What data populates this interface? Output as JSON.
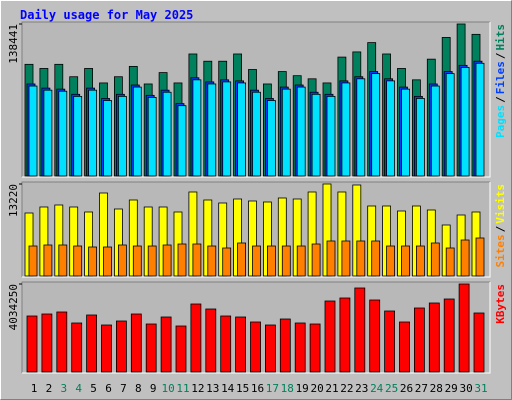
{
  "title": "Daily usage for May 2025",
  "legend_separator": "/",
  "chart_data": [
    {
      "type": "bar",
      "ylim": [
        0,
        138441
      ],
      "yticks": [
        138441
      ],
      "series": [
        {
          "name": "Hits",
          "color": "#00805c",
          "values": [
            101714,
            97947,
            101714,
            90413,
            97947,
            84762,
            90413,
            99831,
            83820,
            94180,
            84762,
            111132,
            104540,
            104540,
            111132,
            97005,
            83820,
            95122,
            91355,
            88529,
            84762,
            108307,
            113016,
            121492,
            111132,
            97947,
            87587,
            106423,
            126201,
            138441,
            129027
          ]
        },
        {
          "name": "Files",
          "color": "#0040ff",
          "values": [
            83821,
            80053,
            79112,
            74403,
            80053,
            70635,
            74403,
            82879,
            73461,
            78170,
            65926,
            89471,
            85704,
            87588,
            86646,
            78170,
            70635,
            80995,
            82879,
            76286,
            74403,
            86646,
            90413,
            95122,
            88530,
            80995,
            72519,
            83821,
            95122,
            100773,
            104540
          ]
        },
        {
          "name": "Pages",
          "color": "#00e0ff",
          "values": [
            81937,
            78169,
            77228,
            72519,
            78169,
            68751,
            72519,
            80995,
            71577,
            76286,
            64042,
            87587,
            83820,
            85704,
            84762,
            76286,
            68751,
            79111,
            80995,
            74402,
            72519,
            84762,
            88529,
            93238,
            86646,
            79111,
            70635,
            81937,
            93238,
            98889,
            102656
          ]
        }
      ]
    },
    {
      "type": "bar",
      "ylim": [
        0,
        13220
      ],
      "yticks": [
        13220
      ],
      "series": [
        {
          "name": "Visits",
          "color": "#ffff00",
          "values": [
            9053,
            9915,
            10203,
            9915,
            9197,
            11927,
            9628,
            10921,
            9915,
            9915,
            9197,
            12071,
            10921,
            10490,
            11065,
            10778,
            10634,
            11209,
            11065,
            12071,
            13220,
            12071,
            13077,
            10059,
            10059,
            9341,
            10059,
            9484,
            7329,
            8766,
            9197
          ]
        },
        {
          "name": "Sites",
          "color": "#ff8000",
          "values": [
            4311,
            4455,
            4455,
            4311,
            4167,
            4167,
            4455,
            4311,
            4311,
            4455,
            4598,
            4598,
            4311,
            4024,
            4742,
            4311,
            4311,
            4311,
            4311,
            4598,
            5030,
            5030,
            5030,
            5030,
            4311,
            4311,
            4311,
            4742,
            4024,
            5173,
            5461
          ]
        }
      ]
    },
    {
      "type": "bar",
      "ylim": [
        0,
        4034250
      ],
      "yticks": [
        4034250
      ],
      "categories": [
        "1",
        "2",
        "3",
        "4",
        "5",
        "6",
        "7",
        "8",
        "9",
        "10",
        "11",
        "12",
        "13",
        "14",
        "15",
        "16",
        "17",
        "18",
        "19",
        "20",
        "21",
        "22",
        "23",
        "24",
        "25",
        "26",
        "27",
        "28",
        "29",
        "30",
        "31"
      ],
      "label_colors": [
        "#000000",
        "#000000",
        "#00805c",
        "#00805c",
        "#000000",
        "#000000",
        "#000000",
        "#000000",
        "#000000",
        "#00805c",
        "#00805c",
        "#000000",
        "#000000",
        "#000000",
        "#000000",
        "#000000",
        "#00805c",
        "#00805c",
        "#000000",
        "#000000",
        "#000000",
        "#000000",
        "#000000",
        "#00805c",
        "#00805c",
        "#000000",
        "#000000",
        "#000000",
        "#000000",
        "#000000",
        "#00805c"
      ],
      "series": [
        {
          "name": "KBytes",
          "color": "#ff0000",
          "values": [
            2567264,
            2658952,
            2750640,
            2246356,
            2613108,
            2154668,
            2338044,
            2658952,
            2200512,
            2521420,
            2108824,
            3117392,
            2888172,
            2567264,
            2521420,
            2292200,
            2154668,
            2429732,
            2246356,
            2200512,
            3254924,
            3392456,
            3850896,
            3300768,
            2796484,
            2292200,
            2934016,
            3163236,
            3346612,
            4034250,
            2704796
          ]
        }
      ]
    }
  ]
}
